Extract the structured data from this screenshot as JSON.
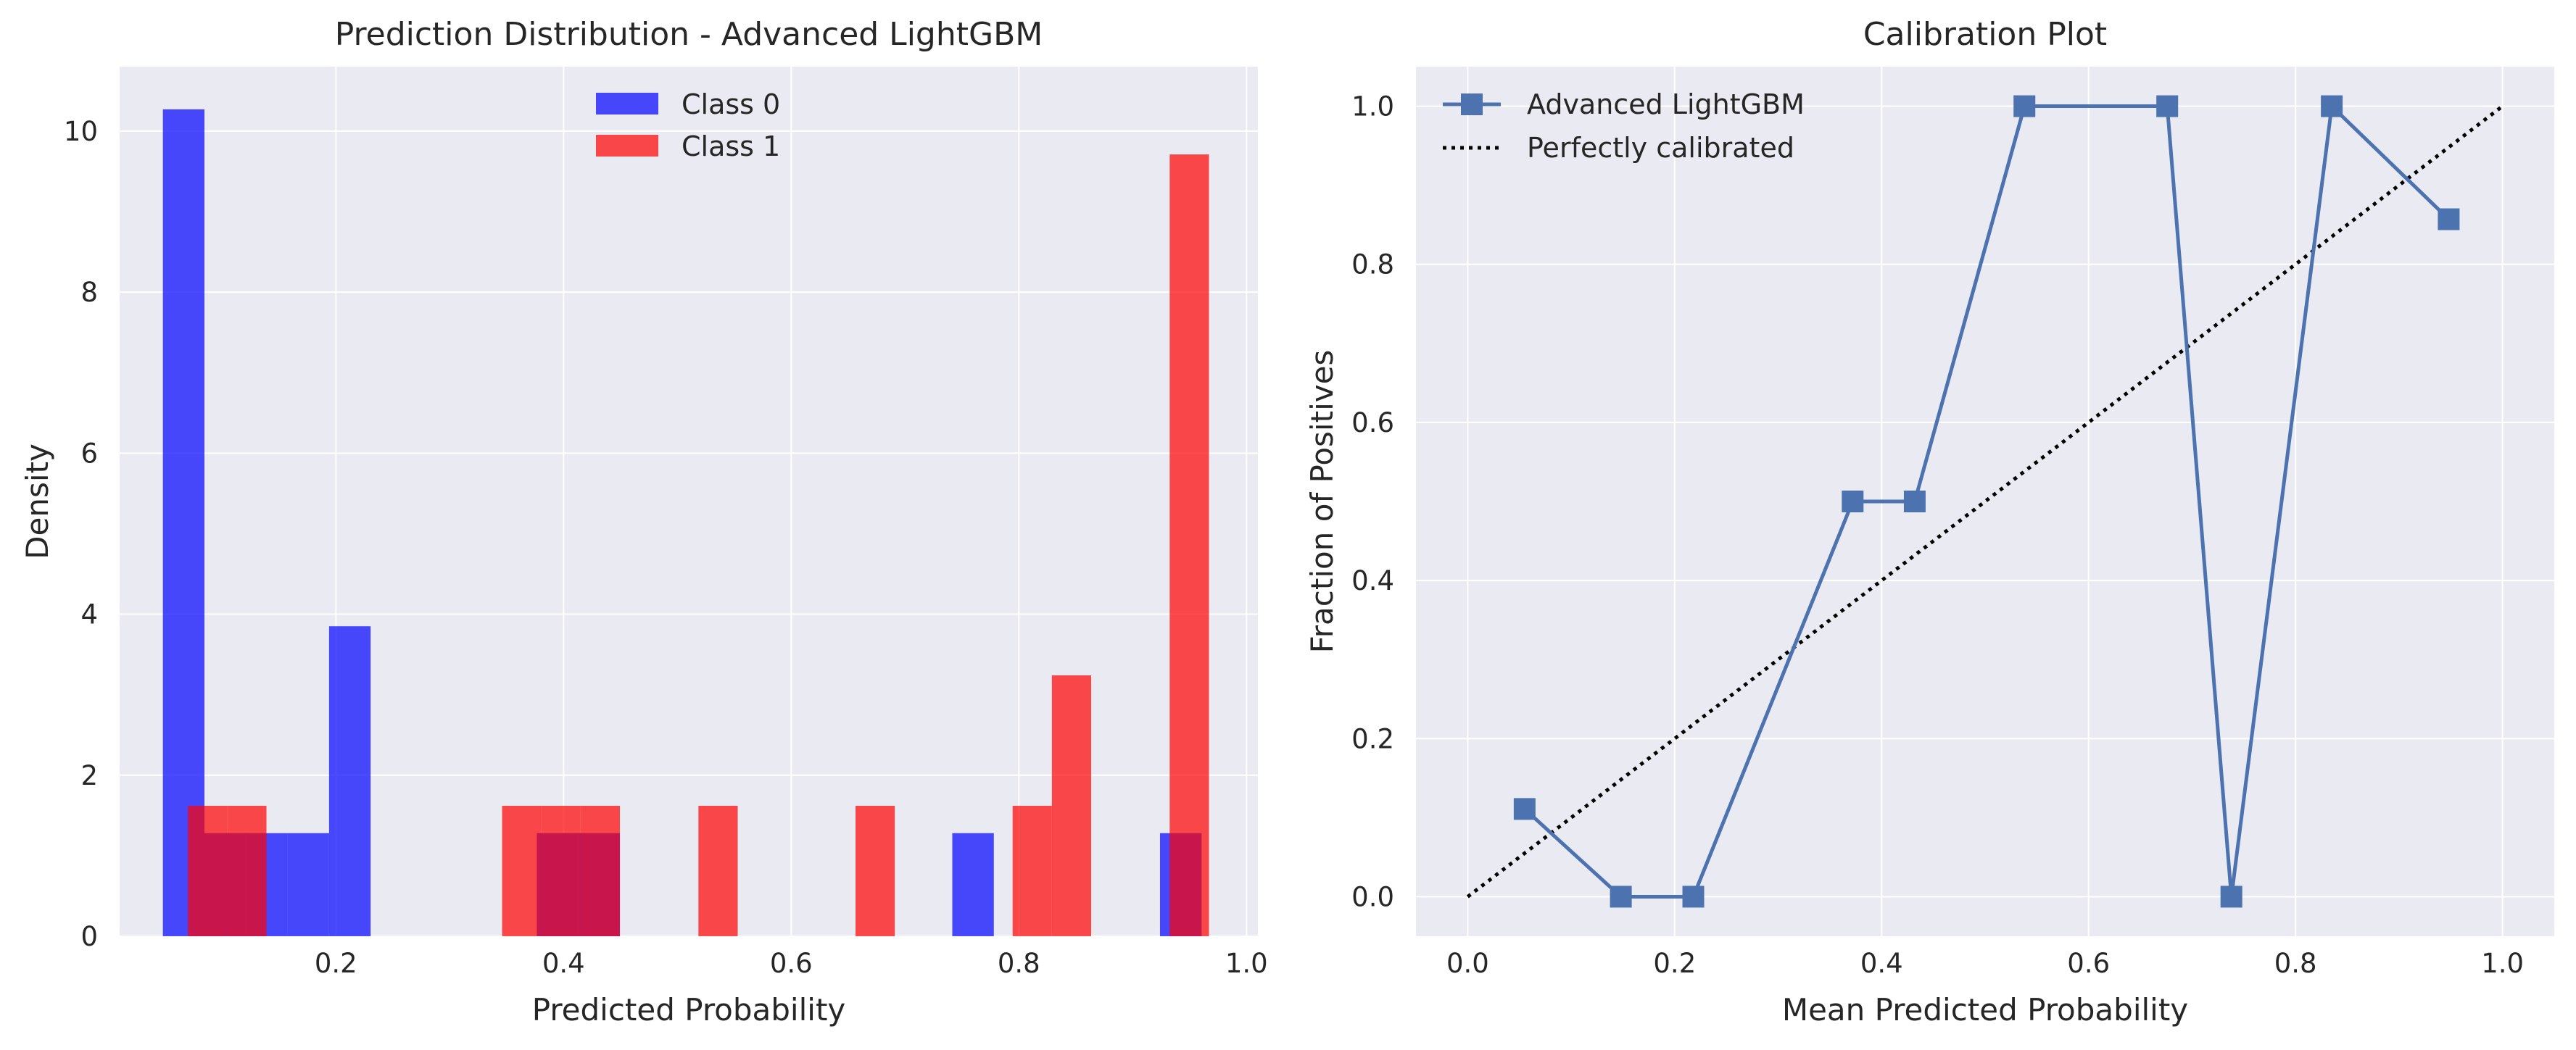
{
  "chart_data": [
    {
      "type": "bar",
      "subtype": "histogram-overlay",
      "title": "Prediction Distribution - Advanced LightGBM",
      "xlabel": "Predicted Probability",
      "ylabel": "Density",
      "xlim": [
        0.01,
        1.01
      ],
      "ylim": [
        0,
        10.8
      ],
      "xticks": [
        0.2,
        0.4,
        0.6,
        0.8,
        1.0
      ],
      "xtick_labels": [
        "0.2",
        "0.4",
        "0.6",
        "0.8",
        "1.0"
      ],
      "yticks": [
        0,
        2,
        4,
        6,
        8,
        10
      ],
      "ytick_labels": [
        "0",
        "2",
        "4",
        "6",
        "8",
        "10"
      ],
      "grid": true,
      "legend_position": "upper-center",
      "series": [
        {
          "name": "Class 0",
          "color": "#0000ff",
          "opacity": 0.7,
          "bins": [
            {
              "x0": 0.048,
              "x1": 0.0845,
              "value": 10.27
            },
            {
              "x0": 0.0845,
              "x1": 0.121,
              "value": 1.28
            },
            {
              "x0": 0.121,
              "x1": 0.1575,
              "value": 1.28
            },
            {
              "x0": 0.1575,
              "x1": 0.194,
              "value": 1.28
            },
            {
              "x0": 0.194,
              "x1": 0.2305,
              "value": 3.85
            },
            {
              "x0": 0.3765,
              "x1": 0.413,
              "value": 1.28
            },
            {
              "x0": 0.413,
              "x1": 0.4495,
              "value": 1.28
            },
            {
              "x0": 0.7415,
              "x1": 0.778,
              "value": 1.28
            },
            {
              "x0": 0.924,
              "x1": 0.9605,
              "value": 1.28
            }
          ]
        },
        {
          "name": "Class 1",
          "color": "#ff0000",
          "opacity": 0.7,
          "bins": [
            {
              "x0": 0.07,
              "x1": 0.1045,
              "value": 1.62
            },
            {
              "x0": 0.1045,
              "x1": 0.139,
              "value": 1.62
            },
            {
              "x0": 0.346,
              "x1": 0.3805,
              "value": 1.62
            },
            {
              "x0": 0.3805,
              "x1": 0.415,
              "value": 1.62
            },
            {
              "x0": 0.415,
              "x1": 0.4495,
              "value": 1.62
            },
            {
              "x0": 0.5185,
              "x1": 0.553,
              "value": 1.62
            },
            {
              "x0": 0.6565,
              "x1": 0.691,
              "value": 1.62
            },
            {
              "x0": 0.7945,
              "x1": 0.829,
              "value": 1.62
            },
            {
              "x0": 0.829,
              "x1": 0.8635,
              "value": 3.24
            },
            {
              "x0": 0.9325,
              "x1": 0.967,
              "value": 9.71
            }
          ]
        }
      ]
    },
    {
      "type": "line",
      "title": "Calibration Plot",
      "xlabel": "Mean Predicted Probability",
      "ylabel": "Fraction of Positives",
      "xlim": [
        -0.05,
        1.05
      ],
      "ylim": [
        -0.05,
        1.05
      ],
      "xticks": [
        0.0,
        0.2,
        0.4,
        0.6,
        0.8,
        1.0
      ],
      "xtick_labels": [
        "0.0",
        "0.2",
        "0.4",
        "0.6",
        "0.8",
        "1.0"
      ],
      "yticks": [
        0.0,
        0.2,
        0.4,
        0.6,
        0.8,
        1.0
      ],
      "ytick_labels": [
        "0.0",
        "0.2",
        "0.4",
        "0.6",
        "0.8",
        "1.0"
      ],
      "grid": true,
      "legend_position": "upper-left",
      "series": [
        {
          "name": "Advanced LightGBM",
          "color": "#4c72b0",
          "marker": "square",
          "x": [
            0.055,
            0.148,
            0.218,
            0.372,
            0.432,
            0.538,
            0.676,
            0.738,
            0.835,
            0.948
          ],
          "y": [
            0.111,
            0.0,
            0.0,
            0.5,
            0.5,
            1.0,
            1.0,
            0.0,
            1.0,
            0.857
          ]
        },
        {
          "name": "Perfectly calibrated",
          "color": "#000000",
          "linestyle": "dotted",
          "x": [
            0.0,
            1.0
          ],
          "y": [
            0.0,
            1.0
          ]
        }
      ]
    }
  ]
}
